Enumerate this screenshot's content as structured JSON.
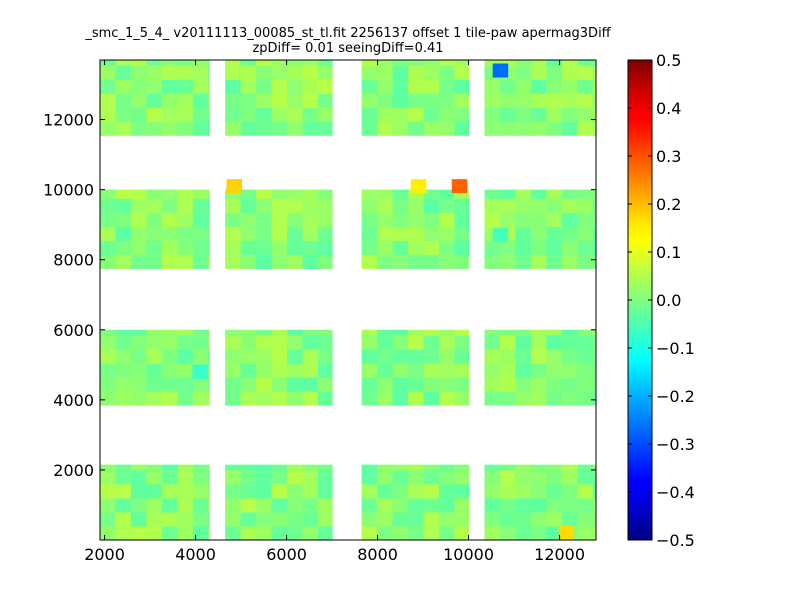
{
  "chart_data": {
    "type": "heatmap",
    "title_lines": [
      "_smc_1_5_4_ v20111113_00085_st_tl.fit 2256137 offset 1 tile-paw apermag3Diff",
      "zpDiff= 0.01 seeingDiff=0.41"
    ],
    "xlabel": "",
    "ylabel": "",
    "xlim": [
      1900,
      12800
    ],
    "ylim": [
      0,
      13700
    ],
    "xticks": [
      2000,
      4000,
      6000,
      8000,
      10000,
      12000
    ],
    "xtick_labels": [
      "2000",
      "4000",
      "6000",
      "8000",
      "10000",
      "12000"
    ],
    "yticks": [
      2000,
      4000,
      6000,
      8000,
      10000,
      12000
    ],
    "ytick_labels": [
      "2000",
      "4000",
      "6000",
      "8000",
      "10000",
      "12000"
    ],
    "colorbar": {
      "colormap": "jet",
      "range": [
        -0.5,
        0.5
      ],
      "ticks": [
        0.5,
        0.4,
        0.3,
        0.2,
        0.1,
        0.0,
        -0.1,
        -0.2,
        -0.3,
        -0.4,
        -0.5
      ],
      "tick_labels": [
        "0.5",
        "0.4",
        "0.3",
        "0.2",
        "0.1",
        "0.0",
        "−0.1",
        "−0.2",
        "−0.3",
        "−0.4",
        "−0.5"
      ]
    },
    "grid": false,
    "cell_size": [
      340,
      400
    ],
    "detector_columns_x": [
      [
        1900,
        4300
      ],
      [
        4650,
        7000
      ],
      [
        7650,
        10000
      ],
      [
        10350,
        12800
      ]
    ],
    "detector_rows_y": [
      [
        0,
        2150
      ],
      [
        3850,
        6000
      ],
      [
        7750,
        10000
      ],
      [
        11550,
        13700
      ]
    ],
    "notable_cells": [
      {
        "x": 4850,
        "y": 10100,
        "value": 0.17
      },
      {
        "x": 8900,
        "y": 10100,
        "value": 0.14
      },
      {
        "x": 9800,
        "y": 10100,
        "value": 0.28
      },
      {
        "x": 10700,
        "y": 13400,
        "value": -0.27
      },
      {
        "x": 12150,
        "y": 200,
        "value": 0.16
      },
      {
        "x": 4100,
        "y": 4800,
        "value": -0.07
      },
      {
        "x": 10700,
        "y": 8700,
        "value": -0.06
      }
    ],
    "typical_value": 0.01
  }
}
